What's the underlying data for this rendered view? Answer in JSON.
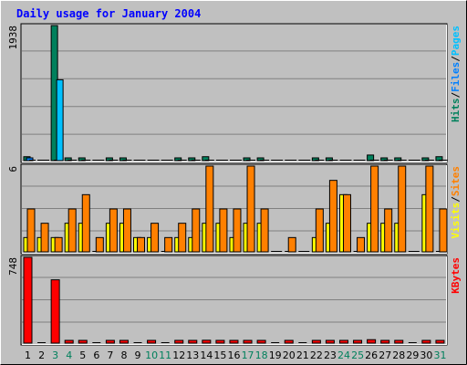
{
  "title": "Daily usage for January 2004",
  "colors": {
    "background": "#c0c0c0",
    "plot_bg": "#c0c0c0",
    "title": "#0000ff",
    "hits": "#00805c",
    "files": "#0080ff",
    "pages": "#00c0ff",
    "visits": "#ffff00",
    "sites": "#ff8000",
    "kbytes": "#ff0000",
    "weekend": "#00805c",
    "weekday": "#000000",
    "grid": "#808080"
  },
  "chart_data": [
    {
      "type": "bar",
      "panel": "top",
      "ymax_label": "1938",
      "ylim": [
        0,
        1938
      ],
      "categories": [
        "1",
        "2",
        "3",
        "4",
        "5",
        "6",
        "7",
        "8",
        "9",
        "10",
        "11",
        "12",
        "13",
        "14",
        "15",
        "16",
        "17",
        "18",
        "19",
        "20",
        "21",
        "22",
        "23",
        "24",
        "25",
        "26",
        "27",
        "28",
        "29",
        "30",
        "31"
      ],
      "weekend_days": [
        "3",
        "4",
        "10",
        "11",
        "17",
        "18",
        "24",
        "25",
        "31"
      ],
      "series": [
        {
          "name": "Hits",
          "values": [
            56,
            0,
            1938,
            25,
            25,
            0,
            25,
            25,
            0,
            0,
            0,
            25,
            25,
            56,
            0,
            0,
            25,
            25,
            0,
            0,
            0,
            35,
            35,
            0,
            0,
            80,
            25,
            25,
            0,
            25,
            56
          ]
        },
        {
          "name": "Files",
          "values": [
            25,
            0,
            0,
            0,
            0,
            0,
            0,
            0,
            0,
            0,
            0,
            0,
            0,
            0,
            0,
            0,
            0,
            0,
            0,
            0,
            0,
            0,
            0,
            0,
            0,
            0,
            0,
            0,
            0,
            0,
            0
          ]
        },
        {
          "name": "Pages",
          "values": [
            0,
            0,
            1160,
            0,
            0,
            0,
            0,
            0,
            0,
            0,
            0,
            0,
            0,
            0,
            0,
            0,
            0,
            0,
            0,
            0,
            0,
            0,
            0,
            0,
            0,
            0,
            0,
            0,
            0,
            0,
            0
          ]
        }
      ],
      "legend_order": [
        "Pages",
        "Files",
        "Hits"
      ]
    },
    {
      "type": "bar",
      "panel": "middle",
      "ymax_label": "6",
      "ylim": [
        0,
        6
      ],
      "categories": [
        "1",
        "2",
        "3",
        "4",
        "5",
        "6",
        "7",
        "8",
        "9",
        "10",
        "11",
        "12",
        "13",
        "14",
        "15",
        "16",
        "17",
        "18",
        "19",
        "20",
        "21",
        "22",
        "23",
        "24",
        "25",
        "26",
        "27",
        "28",
        "29",
        "30",
        "31"
      ],
      "series": [
        {
          "name": "Visits",
          "values": [
            1,
            1,
            1,
            2,
            2,
            0,
            2,
            2,
            1,
            1,
            0,
            1,
            1,
            2,
            2,
            1,
            2,
            2,
            0,
            0,
            0,
            1,
            2,
            4,
            0,
            2,
            2,
            2,
            0,
            4,
            0
          ]
        },
        {
          "name": "Sites",
          "values": [
            3,
            2,
            1,
            3,
            4,
            1,
            3,
            3,
            1,
            2,
            1,
            2,
            3,
            6,
            3,
            3,
            6,
            3,
            0,
            1,
            0,
            3,
            5,
            4,
            1,
            6,
            3,
            6,
            0,
            6,
            3
          ]
        }
      ],
      "legend_order": [
        "Sites",
        "Visits"
      ]
    },
    {
      "type": "bar",
      "panel": "bottom",
      "ymax_label": "748",
      "ylim": [
        0,
        748
      ],
      "categories": [
        "1",
        "2",
        "3",
        "4",
        "5",
        "6",
        "7",
        "8",
        "9",
        "10",
        "11",
        "12",
        "13",
        "14",
        "15",
        "16",
        "17",
        "18",
        "19",
        "20",
        "21",
        "22",
        "23",
        "24",
        "25",
        "26",
        "27",
        "28",
        "29",
        "30",
        "31"
      ],
      "series": [
        {
          "name": "KBytes",
          "values": [
            748,
            0,
            552,
            10,
            10,
            0,
            10,
            10,
            0,
            10,
            0,
            10,
            10,
            25,
            10,
            10,
            10,
            10,
            0,
            10,
            0,
            20,
            10,
            10,
            10,
            30,
            10,
            10,
            0,
            20,
            10
          ]
        }
      ],
      "legend_order": [
        "KBytes"
      ]
    }
  ]
}
